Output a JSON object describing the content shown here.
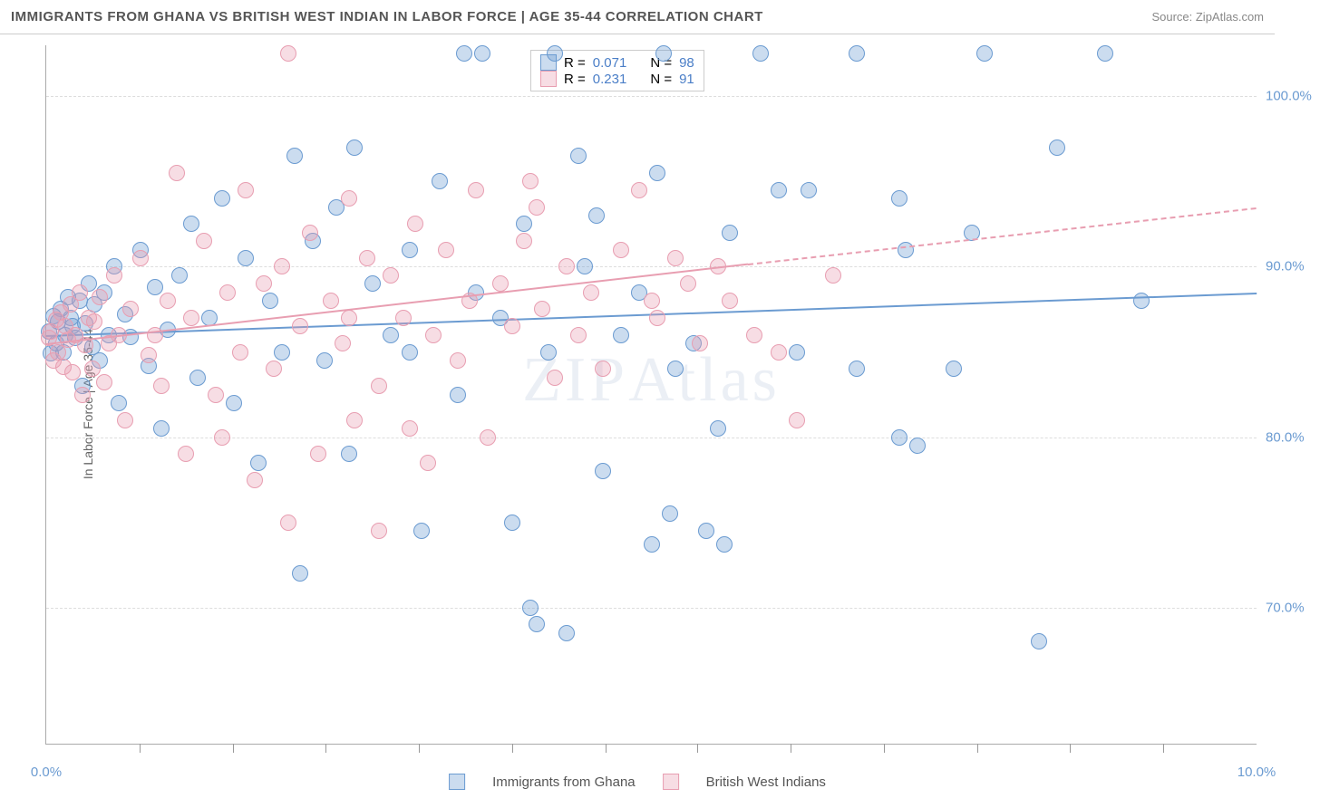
{
  "title": "IMMIGRANTS FROM GHANA VS BRITISH WEST INDIAN IN LABOR FORCE | AGE 35-44 CORRELATION CHART",
  "source": "Source: ZipAtlas.com",
  "ylabel": "In Labor Force | Age 35-44",
  "watermark_a": "ZIP",
  "watermark_b": "Atlas",
  "chart": {
    "type": "scatter",
    "xlim": [
      0,
      10
    ],
    "ylim": [
      62,
      103
    ],
    "xticks": [
      0,
      10
    ],
    "xtick_labels": [
      "0.0%",
      "10.0%"
    ],
    "xtick_minor": [
      0.77,
      1.54,
      2.31,
      3.08,
      3.85,
      4.62,
      5.38,
      6.15,
      6.92,
      7.69,
      8.46,
      9.23
    ],
    "yticks": [
      70,
      80,
      90,
      100
    ],
    "ytick_labels": [
      "70.0%",
      "80.0%",
      "90.0%",
      "100.0%"
    ],
    "grid_color": "#dddddd",
    "background_color": "#ffffff",
    "axis_color": "#aaaaaa",
    "tick_label_color": "#6b9bd1",
    "marker_radius": 9,
    "marker_border_width": 1.5,
    "marker_fill_opacity": 0.35
  },
  "series": [
    {
      "name": "Immigrants from Ghana",
      "color": "#6b9bd1",
      "fill": "rgba(107,155,209,0.35)",
      "stroke": "#6b9bd1",
      "r_label": "R = ",
      "r_value": "0.071",
      "n_label": "N = ",
      "n_value": "98",
      "trend": {
        "x1": 0,
        "y1": 86,
        "x2": 10,
        "y2": 88.5,
        "dash_from": 10
      },
      "points": [
        [
          0.02,
          86.2
        ],
        [
          0.04,
          84.9
        ],
        [
          0.06,
          87.1
        ],
        [
          0.08,
          85.5
        ],
        [
          0.1,
          86.8
        ],
        [
          0.12,
          87.5
        ],
        [
          0.14,
          85.0
        ],
        [
          0.16,
          86.0
        ],
        [
          0.18,
          88.2
        ],
        [
          0.2,
          87.0
        ],
        [
          0.22,
          86.5
        ],
        [
          0.24,
          85.8
        ],
        [
          0.28,
          88.0
        ],
        [
          0.3,
          83.0
        ],
        [
          0.32,
          86.7
        ],
        [
          0.35,
          89.0
        ],
        [
          0.38,
          85.3
        ],
        [
          0.4,
          87.8
        ],
        [
          0.44,
          84.5
        ],
        [
          0.48,
          88.5
        ],
        [
          0.52,
          86.0
        ],
        [
          0.56,
          90.0
        ],
        [
          0.6,
          82.0
        ],
        [
          0.65,
          87.2
        ],
        [
          0.7,
          85.9
        ],
        [
          0.78,
          91.0
        ],
        [
          0.85,
          84.2
        ],
        [
          0.9,
          88.8
        ],
        [
          0.95,
          80.5
        ],
        [
          1.0,
          86.3
        ],
        [
          1.1,
          89.5
        ],
        [
          1.2,
          92.5
        ],
        [
          1.25,
          83.5
        ],
        [
          1.35,
          87.0
        ],
        [
          1.45,
          94.0
        ],
        [
          1.55,
          82.0
        ],
        [
          1.65,
          90.5
        ],
        [
          1.75,
          78.5
        ],
        [
          1.85,
          88.0
        ],
        [
          1.95,
          85.0
        ],
        [
          2.05,
          96.5
        ],
        [
          2.1,
          72.0
        ],
        [
          2.2,
          91.5
        ],
        [
          2.3,
          84.5
        ],
        [
          2.4,
          93.5
        ],
        [
          2.5,
          79.0
        ],
        [
          2.55,
          97.0
        ],
        [
          2.7,
          89.0
        ],
        [
          2.85,
          86.0
        ],
        [
          3.0,
          91.0
        ],
        [
          3.1,
          74.5
        ],
        [
          3.25,
          95.0
        ],
        [
          3.4,
          82.5
        ],
        [
          3.45,
          102.5
        ],
        [
          3.55,
          88.5
        ],
        [
          3.6,
          102.5
        ],
        [
          3.75,
          87.0
        ],
        [
          3.85,
          75.0
        ],
        [
          3.95,
          92.5
        ],
        [
          4.05,
          69.0
        ],
        [
          4.15,
          85.0
        ],
        [
          4.2,
          102.5
        ],
        [
          4.3,
          68.5
        ],
        [
          4.4,
          96.5
        ],
        [
          4.45,
          90.0
        ],
        [
          4.55,
          93.0
        ],
        [
          4.6,
          78.0
        ],
        [
          4.75,
          86.0
        ],
        [
          4.9,
          88.5
        ],
        [
          5.05,
          95.5
        ],
        [
          5.1,
          102.5
        ],
        [
          5.15,
          75.5
        ],
        [
          5.2,
          84.0
        ],
        [
          5.35,
          85.5
        ],
        [
          5.45,
          74.5
        ],
        [
          5.55,
          80.5
        ],
        [
          5.65,
          92.0
        ],
        [
          5.9,
          102.5
        ],
        [
          6.05,
          94.5
        ],
        [
          6.2,
          85.0
        ],
        [
          6.3,
          94.5
        ],
        [
          6.7,
          84.0
        ],
        [
          6.7,
          102.5
        ],
        [
          7.05,
          94.0
        ],
        [
          7.05,
          80.0
        ],
        [
          7.1,
          91.0
        ],
        [
          7.2,
          79.5
        ],
        [
          7.5,
          84.0
        ],
        [
          7.65,
          92.0
        ],
        [
          7.75,
          102.5
        ],
        [
          8.2,
          68.0
        ],
        [
          8.35,
          97.0
        ],
        [
          8.75,
          102.5
        ],
        [
          9.05,
          88.0
        ],
        [
          5.0,
          73.7
        ],
        [
          5.6,
          73.7
        ],
        [
          4.0,
          70.0
        ],
        [
          3.0,
          85.0
        ]
      ]
    },
    {
      "name": "British West Indians",
      "color": "#e89eb1",
      "fill": "rgba(232,158,177,0.35)",
      "stroke": "#e89eb1",
      "r_label": "R = ",
      "r_value": "0.231",
      "n_label": "N = ",
      "n_value": "91",
      "trend": {
        "x1": 0,
        "y1": 85.5,
        "x2": 5.8,
        "y2": 90.2,
        "dash_to_x": 10,
        "dash_to_y": 93.5
      },
      "points": [
        [
          0.02,
          85.8
        ],
        [
          0.04,
          86.2
        ],
        [
          0.06,
          84.5
        ],
        [
          0.08,
          86.9
        ],
        [
          0.1,
          85.0
        ],
        [
          0.12,
          87.3
        ],
        [
          0.14,
          84.1
        ],
        [
          0.16,
          86.5
        ],
        [
          0.18,
          85.7
        ],
        [
          0.2,
          87.8
        ],
        [
          0.22,
          83.8
        ],
        [
          0.24,
          86.0
        ],
        [
          0.28,
          88.5
        ],
        [
          0.3,
          82.5
        ],
        [
          0.32,
          85.4
        ],
        [
          0.35,
          87.0
        ],
        [
          0.38,
          84.0
        ],
        [
          0.4,
          86.8
        ],
        [
          0.44,
          88.2
        ],
        [
          0.48,
          83.2
        ],
        [
          0.52,
          85.5
        ],
        [
          0.56,
          89.5
        ],
        [
          0.6,
          86.0
        ],
        [
          0.65,
          81.0
        ],
        [
          0.7,
          87.5
        ],
        [
          0.78,
          90.5
        ],
        [
          0.85,
          84.8
        ],
        [
          0.9,
          86.0
        ],
        [
          0.95,
          83.0
        ],
        [
          1.0,
          88.0
        ],
        [
          1.08,
          95.5
        ],
        [
          1.15,
          79.0
        ],
        [
          1.2,
          87.0
        ],
        [
          1.3,
          91.5
        ],
        [
          1.4,
          82.5
        ],
        [
          1.45,
          80.0
        ],
        [
          1.5,
          88.5
        ],
        [
          1.6,
          85.0
        ],
        [
          1.65,
          94.5
        ],
        [
          1.72,
          77.5
        ],
        [
          1.8,
          89.0
        ],
        [
          1.88,
          84.0
        ],
        [
          1.95,
          90.0
        ],
        [
          2.0,
          102.5
        ],
        [
          2.0,
          75.0
        ],
        [
          2.1,
          86.5
        ],
        [
          2.18,
          92.0
        ],
        [
          2.25,
          79.0
        ],
        [
          2.35,
          88.0
        ],
        [
          2.45,
          85.5
        ],
        [
          2.5,
          94.0
        ],
        [
          2.55,
          81.0
        ],
        [
          2.65,
          90.5
        ],
        [
          2.75,
          83.0
        ],
        [
          2.75,
          74.5
        ],
        [
          2.85,
          89.5
        ],
        [
          2.95,
          87.0
        ],
        [
          3.05,
          92.5
        ],
        [
          3.15,
          78.5
        ],
        [
          3.2,
          86.0
        ],
        [
          3.3,
          91.0
        ],
        [
          3.4,
          84.5
        ],
        [
          3.5,
          88.0
        ],
        [
          3.55,
          94.5
        ],
        [
          3.65,
          80.0
        ],
        [
          3.75,
          89.0
        ],
        [
          3.85,
          86.5
        ],
        [
          3.95,
          91.5
        ],
        [
          4.05,
          93.5
        ],
        [
          4.1,
          87.5
        ],
        [
          4.2,
          83.5
        ],
        [
          4.3,
          90.0
        ],
        [
          4.4,
          86.0
        ],
        [
          4.5,
          88.5
        ],
        [
          4.6,
          84.0
        ],
        [
          4.75,
          91.0
        ],
        [
          4.9,
          94.5
        ],
        [
          5.05,
          87.0
        ],
        [
          5.2,
          90.5
        ],
        [
          5.3,
          89.0
        ],
        [
          5.4,
          85.5
        ],
        [
          5.55,
          90.0
        ],
        [
          5.65,
          88.0
        ],
        [
          5.85,
          86.0
        ],
        [
          6.05,
          85.0
        ],
        [
          6.2,
          81.0
        ],
        [
          6.5,
          89.5
        ],
        [
          5.0,
          88.0
        ],
        [
          4.0,
          95.0
        ],
        [
          3.0,
          80.5
        ],
        [
          2.5,
          87.0
        ]
      ]
    }
  ],
  "legend_bottom": [
    {
      "label": "Immigrants from Ghana",
      "fill": "rgba(107,155,209,0.35)",
      "stroke": "#6b9bd1"
    },
    {
      "label": "British West Indians",
      "fill": "rgba(232,158,177,0.35)",
      "stroke": "#e89eb1"
    }
  ]
}
